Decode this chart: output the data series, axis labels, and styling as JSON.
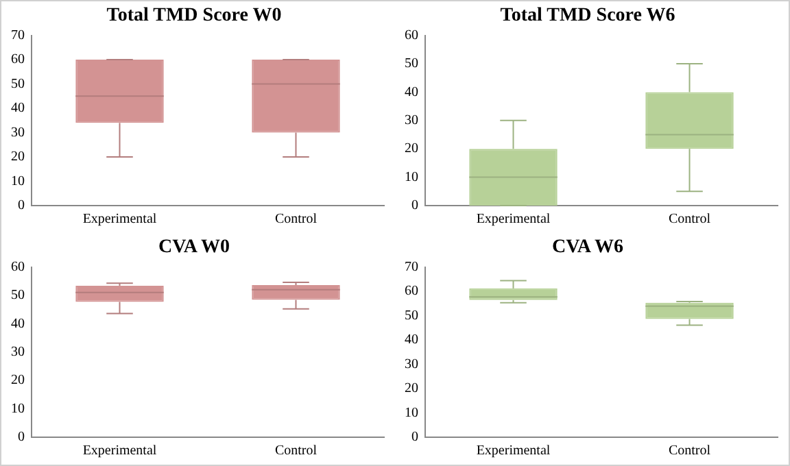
{
  "chart_data": [
    {
      "type": "box",
      "title": "Total TMD Score W0",
      "categories": [
        "Experimental",
        "Control"
      ],
      "color": "#d39393",
      "ylim": [
        0,
        70
      ],
      "yticks": [
        0,
        10,
        20,
        30,
        40,
        50,
        60,
        70
      ],
      "grid": false,
      "boxes": [
        {
          "low": 20,
          "q1": 34,
          "median": 45,
          "q3": 60,
          "high": 60
        },
        {
          "low": 20,
          "q1": 30,
          "median": 50,
          "q3": 60,
          "high": 60
        }
      ]
    },
    {
      "type": "box",
      "title": "Total TMD Score W6",
      "categories": [
        "Experimental",
        "Control"
      ],
      "color": "#b7d198",
      "ylim": [
        0,
        60
      ],
      "yticks": [
        0,
        10,
        20,
        30,
        40,
        50,
        60
      ],
      "grid": false,
      "boxes": [
        {
          "low": 0,
          "q1": 0,
          "median": 10,
          "q3": 20,
          "high": 30
        },
        {
          "low": 5,
          "q1": 20,
          "median": 25,
          "q3": 40,
          "high": 50
        }
      ]
    },
    {
      "type": "box",
      "title": "CVA W0",
      "categories": [
        "Experimental",
        "Control"
      ],
      "color": "#d39393",
      "ylim": [
        0,
        60
      ],
      "yticks": [
        0,
        10,
        20,
        30,
        40,
        50,
        60
      ],
      "grid": false,
      "boxes": [
        {
          "low": 43.6,
          "q1": 47.7,
          "median": 51,
          "q3": 53.4,
          "high": 54.3
        },
        {
          "low": 45.2,
          "q1": 48.4,
          "median": 52,
          "q3": 53.6,
          "high": 54.6
        }
      ]
    },
    {
      "type": "box",
      "title": "CVA W6",
      "categories": [
        "Experimental",
        "Control"
      ],
      "color": "#b7d198",
      "ylim": [
        0,
        70
      ],
      "yticks": [
        0,
        10,
        20,
        30,
        40,
        50,
        60,
        70
      ],
      "grid": false,
      "boxes": [
        {
          "low": 55.3,
          "q1": 56.4,
          "median": 57.7,
          "q3": 61.2,
          "high": 64.4
        },
        {
          "low": 46.1,
          "q1": 48.6,
          "median": 53.9,
          "q3": 55.3,
          "high": 55.8
        }
      ]
    }
  ]
}
